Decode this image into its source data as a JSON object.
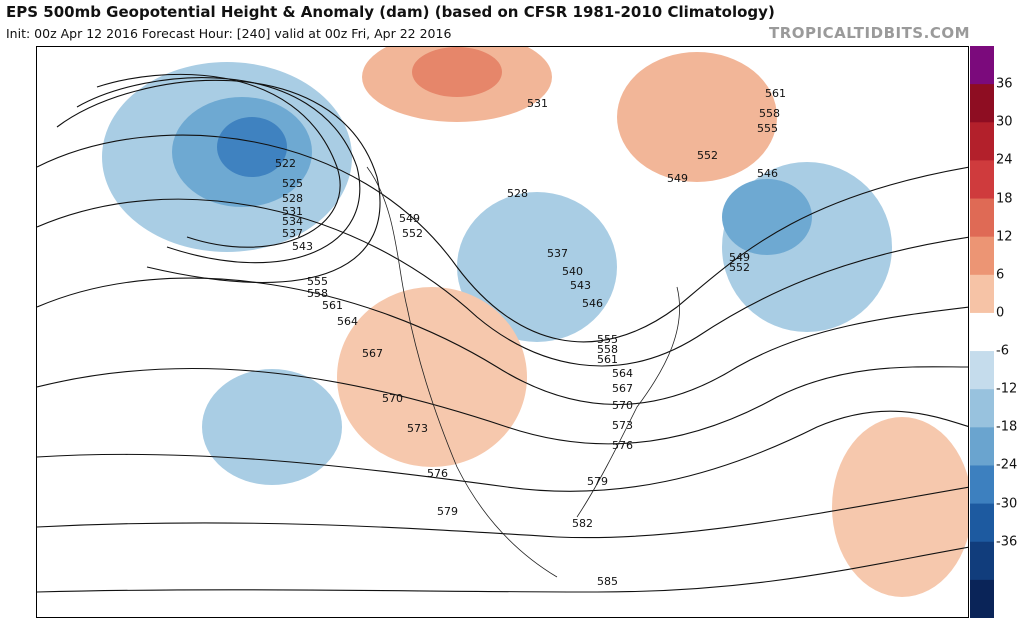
{
  "header": {
    "title": "EPS 500mb Geopotential Height & Anomaly (dam) (based on CFSR 1981-2010 Climatology)",
    "subtitle": "Init: 00z Apr 12 2016   Forecast Hour: [240]   valid at 00z Fri, Apr 22 2016",
    "watermark": "TROPICALTIDBITS.COM"
  },
  "colorbar": {
    "ticks": [
      "36",
      "30",
      "24",
      "18",
      "12",
      "6",
      "0",
      "-6",
      "-12",
      "-18",
      "-24",
      "-30",
      "-36"
    ],
    "colors": [
      "#7b0a7c",
      "#8e0d22",
      "#b3202b",
      "#cf3b3d",
      "#df6a55",
      "#ec9574",
      "#f6c3a6",
      "#ffffff",
      "#c5dcec",
      "#98c2de",
      "#6aa4cf",
      "#3d80bf",
      "#1d5aa0",
      "#113d7c",
      "#0a2458"
    ]
  },
  "contour_labels": [
    "522",
    "525",
    "528",
    "531",
    "534",
    "537",
    "543",
    "549",
    "552",
    "555",
    "558",
    "561",
    "564",
    "567",
    "570",
    "573",
    "576",
    "579",
    "582",
    "585",
    "531",
    "528",
    "537",
    "540",
    "543",
    "546",
    "555",
    "558",
    "561",
    "564",
    "567",
    "570",
    "573",
    "576",
    "579",
    "546",
    "549",
    "552",
    "555",
    "558",
    "561",
    "549",
    "552"
  ]
}
